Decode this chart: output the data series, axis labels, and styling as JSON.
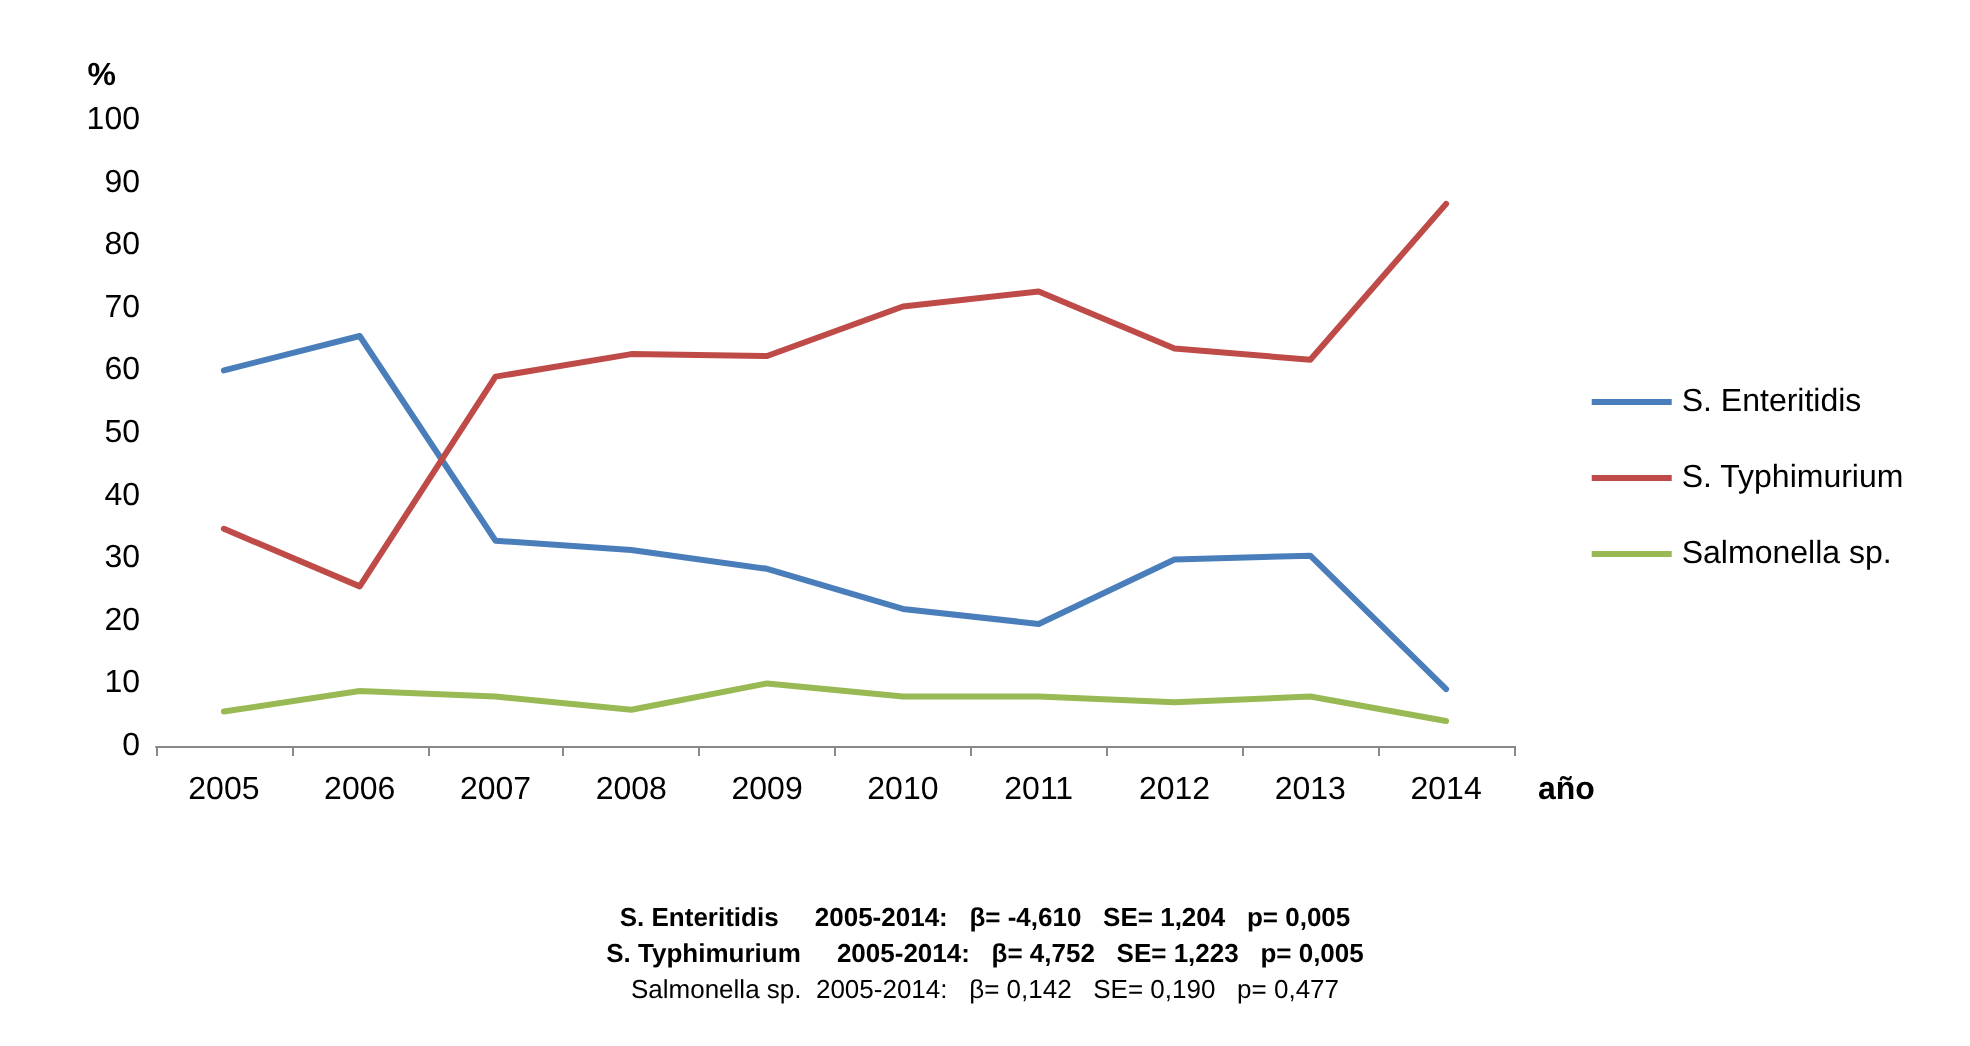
{
  "chart_data": {
    "type": "line",
    "ylabel": "%",
    "xlabel": "año",
    "categories": [
      "2005",
      "2006",
      "2007",
      "2008",
      "2009",
      "2010",
      "2011",
      "2012",
      "2013",
      "2014"
    ],
    "series": [
      {
        "name": "S. Enteritidis",
        "color": "#4a7ebb",
        "values": [
          60,
          65.5,
          32.8,
          31.3,
          28.3,
          21.9,
          19.5,
          29.8,
          30.4,
          9.1
        ]
      },
      {
        "name": "S. Typhimurium",
        "color": "#be4b48",
        "values": [
          34.7,
          25.5,
          59,
          62.6,
          62.3,
          70.2,
          72.6,
          63.5,
          61.7,
          86.6
        ]
      },
      {
        "name": "Salmonella sp.",
        "color": "#98b954",
        "values": [
          5.5,
          8.8,
          7.9,
          5.8,
          10,
          7.9,
          7.9,
          7,
          7.9,
          4
        ]
      }
    ],
    "ylim": [
      0,
      100
    ],
    "yticks": [
      0,
      10,
      20,
      30,
      40,
      50,
      60,
      70,
      80,
      90,
      100
    ],
    "grid": false,
    "legend": "right",
    "marker": "none",
    "line_style": "solid",
    "annotations": [
      "S. Enteritidis     2005-2014:   β= -4,610   SE= 1,204   p= 0,005",
      "S. Typhimurium     2005-2014:   β= 4,752   SE= 1,223   p= 0,005",
      "Salmonella sp.  2005-2014:   β= 0,142   SE= 0,190   p= 0,477"
    ]
  }
}
